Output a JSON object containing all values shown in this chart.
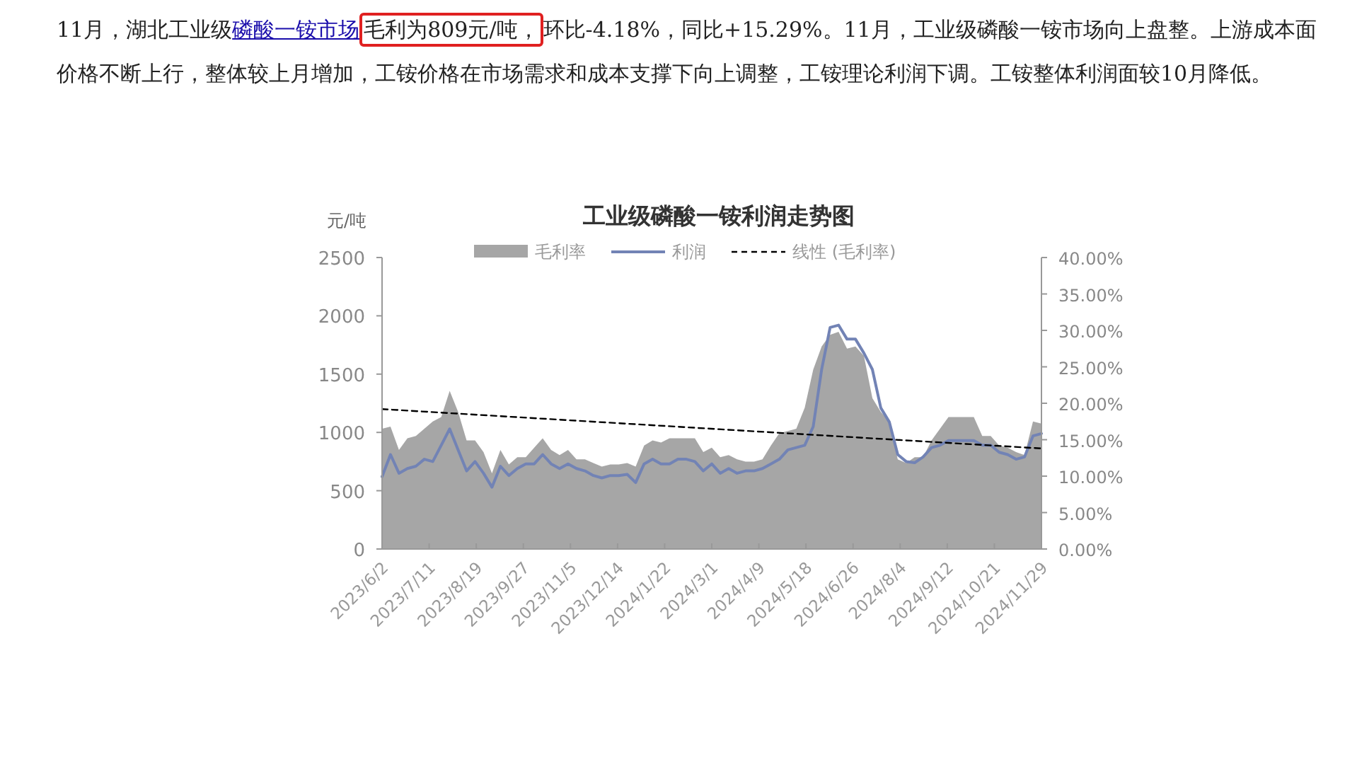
{
  "chart_data": {
    "type": "line",
    "title": "工业级磷酸一铵利润走势图",
    "ylabel": "元/吨",
    "annotations": [
      "11月，湖北工业级",
      "磷酸一铵市场",
      "毛利为809元/吨，",
      "环比-4.18%，同比+15.29%。11月，工业级磷酸一铵市场向上盘整。上游成本面价格不断上行，整体较上月增加，工铵价格在市场需求和成本支撑下向上调整，工铵理论利润下调。工铵整体利润面较10月降低。"
    ],
    "x": [
      "2023-06-02",
      "2023-06-09",
      "2023-06-16",
      "2023-06-23",
      "2023-06-30",
      "2023-07-07",
      "2023-07-14",
      "2023-07-21",
      "2023-07-28",
      "2023-08-04",
      "2023-08-11",
      "2023-08-18",
      "2023-08-25",
      "2023-09-01",
      "2023-09-08",
      "2023-09-15",
      "2023-09-22",
      "2023-09-29",
      "2023-10-06",
      "2023-10-13",
      "2023-10-20",
      "2023-10-27",
      "2023-11-03",
      "2023-11-10",
      "2023-11-17",
      "2023-11-24",
      "2023-12-01",
      "2023-12-08",
      "2023-12-15",
      "2023-12-22",
      "2023-12-29",
      "2024-01-05",
      "2024-01-12",
      "2024-01-19",
      "2024-01-26",
      "2024-02-02",
      "2024-02-09",
      "2024-02-16",
      "2024-02-23",
      "2024-03-01",
      "2024-03-08",
      "2024-03-15",
      "2024-03-22",
      "2024-03-29",
      "2024-04-05",
      "2024-04-12",
      "2024-04-19",
      "2024-04-26",
      "2024-05-03",
      "2024-05-10",
      "2024-05-17",
      "2024-05-24",
      "2024-05-31",
      "2024-06-07",
      "2024-06-14",
      "2024-06-21",
      "2024-06-28",
      "2024-07-05",
      "2024-07-12",
      "2024-07-19",
      "2024-07-26",
      "2024-08-02",
      "2024-08-09",
      "2024-08-16",
      "2024-08-23",
      "2024-08-30",
      "2024-09-06",
      "2024-09-13",
      "2024-09-20",
      "2024-09-27",
      "2024-10-04",
      "2024-10-11",
      "2024-10-18",
      "2024-10-25",
      "2024-11-01",
      "2024-11-08",
      "2024-11-15",
      "2024-11-22",
      "2024-11-29"
    ],
    "series": [
      {
        "name": "毛利率",
        "type": "area",
        "axis": "y2",
        "color": "#a6a6a6",
        "values": [
          16.5,
          16.8,
          13.6,
          15.2,
          15.5,
          16.5,
          17.5,
          18.1,
          21.7,
          18.8,
          14.9,
          14.9,
          13.3,
          10.4,
          13.6,
          11.6,
          12.6,
          12.6,
          13.9,
          15.2,
          13.6,
          12.9,
          13.6,
          12.3,
          12.3,
          11.8,
          11.3,
          11.6,
          11.6,
          11.8,
          11.3,
          14.2,
          14.9,
          14.6,
          15.2,
          15.2,
          15.2,
          15.2,
          13.3,
          13.9,
          12.6,
          12.9,
          12.3,
          12.0,
          12.0,
          12.3,
          14.2,
          15.9,
          16.2,
          16.5,
          19.4,
          24.6,
          27.8,
          29.4,
          29.8,
          27.5,
          27.8,
          26.5,
          20.7,
          18.8,
          17.5,
          12.3,
          11.8,
          12.6,
          12.6,
          14.9,
          16.5,
          18.1,
          18.1,
          18.1,
          18.1,
          15.5,
          15.5,
          14.2,
          13.9,
          13.3,
          12.9,
          17.5,
          17.2
        ]
      },
      {
        "name": "利润",
        "color": "#7283b5",
        "values": [
          620,
          810,
          650,
          690,
          710,
          770,
          750,
          890,
          1030,
          850,
          670,
          750,
          650,
          530,
          710,
          630,
          690,
          730,
          730,
          810,
          730,
          690,
          730,
          690,
          670,
          630,
          610,
          630,
          630,
          640,
          570,
          730,
          770,
          730,
          730,
          770,
          770,
          750,
          670,
          730,
          650,
          690,
          650,
          670,
          670,
          690,
          730,
          770,
          850,
          870,
          890,
          1050,
          1540,
          1900,
          1920,
          1800,
          1800,
          1680,
          1540,
          1210,
          1090,
          810,
          750,
          740,
          790,
          870,
          890,
          930,
          930,
          930,
          930,
          890,
          890,
          830,
          810,
          770,
          790,
          970,
          990
        ]
      },
      {
        "name": "线性 (毛利率)",
        "axis": "y2",
        "line_style": "dashed",
        "color": "#000000",
        "x": [
          "2023-06-02",
          "2024-11-29"
        ],
        "values": [
          19.2,
          13.8
        ]
      }
    ],
    "xlim": [
      "2023-06-02",
      "2024-11-29"
    ],
    "xticks": [
      {
        "value": "2023-06-02",
        "label": "2023/6/2"
      },
      {
        "value": "2023-07-11",
        "label": "2023/7/11"
      },
      {
        "value": "2023-08-19",
        "label": "2023/8/19"
      },
      {
        "value": "2023-09-27",
        "label": "2023/9/27"
      },
      {
        "value": "2023-11-05",
        "label": "2023/11/5"
      },
      {
        "value": "2023-12-14",
        "label": "2023/12/14"
      },
      {
        "value": "2024-01-22",
        "label": "2024/1/22"
      },
      {
        "value": "2024-03-01",
        "label": "2024/3/1"
      },
      {
        "value": "2024-04-09",
        "label": "2024/4/9"
      },
      {
        "value": "2024-05-18",
        "label": "2024/5/18"
      },
      {
        "value": "2024-06-26",
        "label": "2024/6/26"
      },
      {
        "value": "2024-08-04",
        "label": "2024/8/4"
      },
      {
        "value": "2024-09-12",
        "label": "2024/9/12"
      },
      {
        "value": "2024-10-21",
        "label": "2024/10/21"
      },
      {
        "value": "2024-11-29",
        "label": "2024/11/29"
      }
    ],
    "ylim": [
      0,
      2500
    ],
    "yticks": [
      0,
      500,
      1000,
      1500,
      2000,
      2500
    ],
    "y2lim": [
      0,
      40
    ],
    "y2ticks": [
      {
        "value": 0,
        "label": "0.00%"
      },
      {
        "value": 5,
        "label": "5.00%"
      },
      {
        "value": 10,
        "label": "10.00%"
      },
      {
        "value": 15,
        "label": "15.00%"
      },
      {
        "value": 20,
        "label": "20.00%"
      },
      {
        "value": 25,
        "label": "25.00%"
      },
      {
        "value": 30,
        "label": "30.00%"
      },
      {
        "value": 35,
        "label": "35.00%"
      },
      {
        "value": 40,
        "label": "40.00%"
      }
    ],
    "legend": "top"
  }
}
